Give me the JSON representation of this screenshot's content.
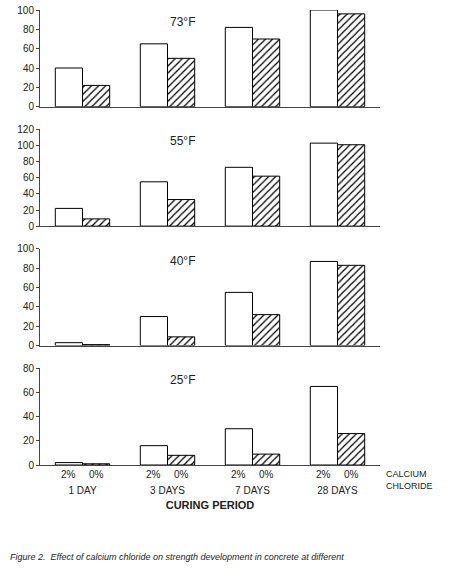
{
  "chart_data": [
    {
      "type": "bar",
      "title": "73°F",
      "categories": [
        "1 DAY",
        "3 DAYS",
        "7 DAYS",
        "28 DAYS"
      ],
      "series": [
        {
          "name": "2%",
          "color": "white",
          "values": [
            40,
            65,
            82,
            100
          ]
        },
        {
          "name": "0%",
          "color": "white",
          "marker": "hatched",
          "values": [
            22,
            50,
            70,
            96
          ]
        }
      ],
      "ylim": [
        0,
        100
      ],
      "yticks": [
        0,
        20,
        40,
        60,
        80,
        100
      ],
      "grid": false,
      "tick_labels": "y"
    },
    {
      "type": "bar",
      "title": "55°F",
      "categories": [
        "1 DAY",
        "3 DAYS",
        "7 DAYS",
        "28 DAYS"
      ],
      "series": [
        {
          "name": "2%",
          "color": "white",
          "values": [
            22,
            55,
            73,
            103
          ]
        },
        {
          "name": "0%",
          "color": "white",
          "marker": "hatched",
          "values": [
            9,
            33,
            62,
            101
          ]
        }
      ],
      "ylim": [
        0,
        120
      ],
      "yticks": [
        0,
        20,
        40,
        60,
        80,
        100,
        120
      ],
      "grid": false,
      "tick_labels": "y"
    },
    {
      "type": "bar",
      "title": "40°F",
      "categories": [
        "1 DAY",
        "3 DAYS",
        "7 DAYS",
        "28 DAYS"
      ],
      "series": [
        {
          "name": "2%",
          "color": "white",
          "values": [
            3,
            30,
            55,
            87
          ]
        },
        {
          "name": "0%",
          "color": "white",
          "marker": "hatched",
          "values": [
            1,
            9,
            32,
            83
          ]
        }
      ],
      "ylim": [
        0,
        100
      ],
      "yticks": [
        0,
        20,
        40,
        60,
        80,
        100
      ],
      "grid": false,
      "tick_labels": "y"
    },
    {
      "type": "bar",
      "title": "25°F",
      "categories": [
        "1 DAY",
        "3 DAYS",
        "7 DAYS",
        "28 DAYS"
      ],
      "series": [
        {
          "name": "2%",
          "color": "white",
          "values": [
            2,
            16,
            30,
            65
          ]
        },
        {
          "name": "0%",
          "color": "white",
          "marker": "hatched",
          "values": [
            1,
            8,
            9,
            26
          ]
        }
      ],
      "ylim": [
        0,
        80
      ],
      "yticks": [
        0,
        20,
        40,
        60,
        80
      ],
      "grid": false,
      "x_label": "CURING PERIOD",
      "annotations": [
        "CALCIUM\nCHLORIDE"
      ],
      "caption": "Figure 2.  Effect of calcium chloride on strength development in concrete at different"
    }
  ]
}
